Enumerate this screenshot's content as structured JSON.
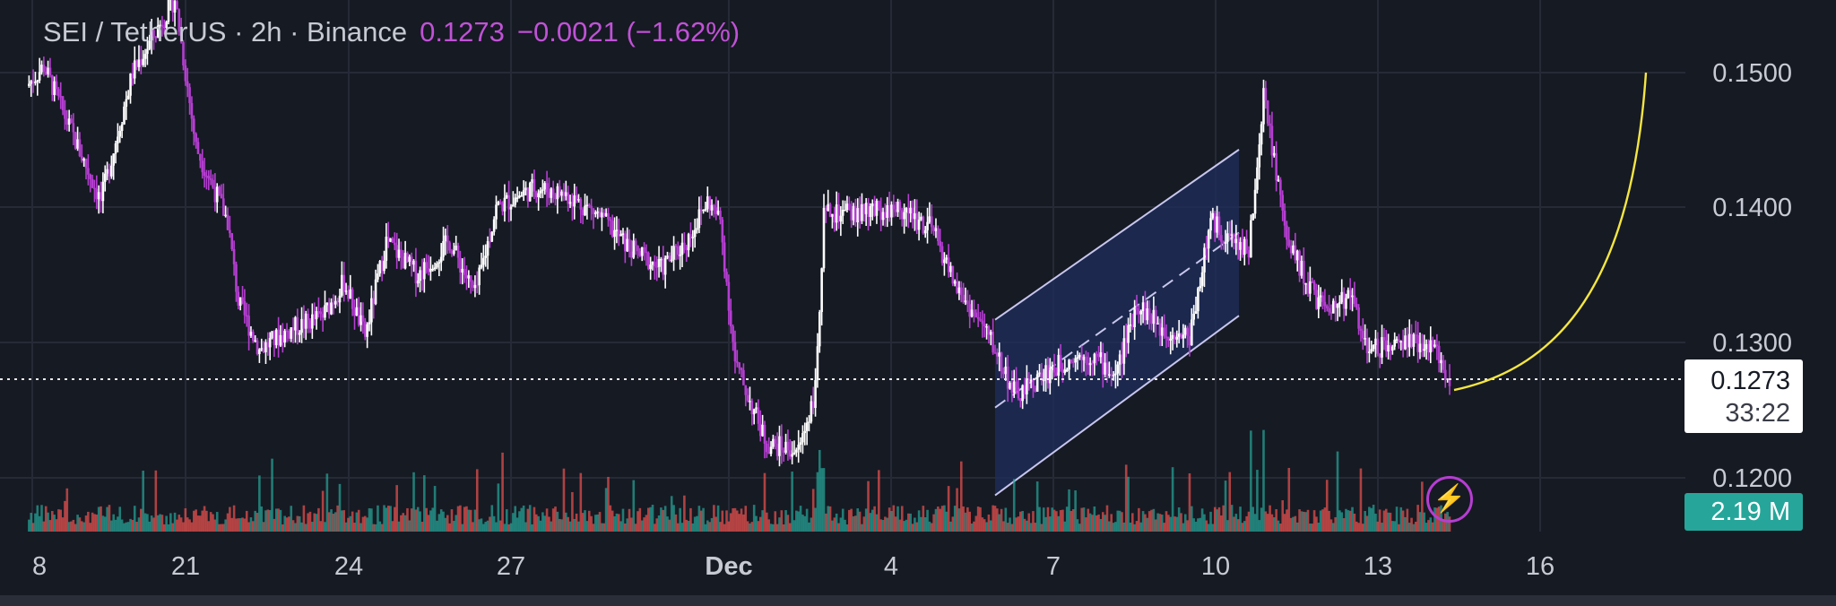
{
  "header": {
    "symbol": "SEI / TetherUS · 2h · Binance",
    "price": "0.1273",
    "change": "−0.0021 (−1.62%)"
  },
  "price_tag": {
    "price": "0.1273",
    "countdown": "33:22"
  },
  "volume_tag": "2.19 M",
  "icons": {
    "lightning": "lightning-icon"
  },
  "colors": {
    "background": "#161a23",
    "candle_up": "#ffffff",
    "candle_down": "#b53ed1",
    "volume_up": "#26a69a",
    "volume_down": "#ef5350",
    "channel_fill": "#1f2d5c",
    "channel_line": "#c8c6ee",
    "curve": "#f5e642",
    "text": "#c7cad3"
  },
  "chart_data": {
    "type": "candlestick",
    "x_ticks": [
      "8",
      "21",
      "24",
      "27",
      "Dec",
      "4",
      "7",
      "10",
      "13",
      "16"
    ],
    "y_ticks": [
      "0.1500",
      "0.1400",
      "0.1300",
      "0.1200"
    ],
    "ylim": [
      0.1187,
      0.1545
    ],
    "current_price": 0.1273,
    "grid": true,
    "price_path": [
      [
        0,
        0.149
      ],
      [
        8,
        0.1505
      ],
      [
        20,
        0.146
      ],
      [
        35,
        0.1405
      ],
      [
        50,
        0.15
      ],
      [
        70,
        0.1555
      ],
      [
        80,
        0.1445
      ],
      [
        95,
        0.139
      ],
      [
        100,
        0.133
      ],
      [
        110,
        0.1295
      ],
      [
        125,
        0.131
      ],
      [
        140,
        0.132
      ],
      [
        150,
        0.1345
      ],
      [
        160,
        0.1305
      ],
      [
        170,
        0.1375
      ],
      [
        185,
        0.135
      ],
      [
        200,
        0.1375
      ],
      [
        212,
        0.1335
      ],
      [
        222,
        0.14
      ],
      [
        240,
        0.1415
      ],
      [
        255,
        0.141
      ],
      [
        270,
        0.1395
      ],
      [
        285,
        0.137
      ],
      [
        300,
        0.1355
      ],
      [
        312,
        0.1375
      ],
      [
        322,
        0.1405
      ],
      [
        328,
        0.139
      ],
      [
        335,
        0.1285
      ],
      [
        350,
        0.1225
      ],
      [
        365,
        0.122
      ],
      [
        373,
        0.1265
      ],
      [
        377,
        0.1395
      ],
      [
        395,
        0.1395
      ],
      [
        412,
        0.14
      ],
      [
        428,
        0.1385
      ],
      [
        440,
        0.134
      ],
      [
        455,
        0.1305
      ],
      [
        468,
        0.126
      ],
      [
        480,
        0.1275
      ],
      [
        495,
        0.129
      ],
      [
        505,
        0.129
      ],
      [
        515,
        0.1275
      ],
      [
        525,
        0.133
      ],
      [
        537,
        0.131
      ],
      [
        550,
        0.1305
      ],
      [
        560,
        0.139
      ],
      [
        570,
        0.1375
      ],
      [
        578,
        0.137
      ],
      [
        585,
        0.1485
      ],
      [
        595,
        0.1385
      ],
      [
        605,
        0.1345
      ],
      [
        615,
        0.132
      ],
      [
        625,
        0.1335
      ],
      [
        635,
        0.1295
      ],
      [
        648,
        0.13
      ],
      [
        660,
        0.13
      ],
      [
        668,
        0.129
      ],
      [
        673,
        0.1273
      ]
    ],
    "channel": {
      "lower_start": 0.1187,
      "lower_end": 0.132,
      "upper_start": 0.1317,
      "upper_end": 0.1443
    },
    "projection_curve": {
      "start": 0.1265,
      "end": 0.15
    }
  }
}
